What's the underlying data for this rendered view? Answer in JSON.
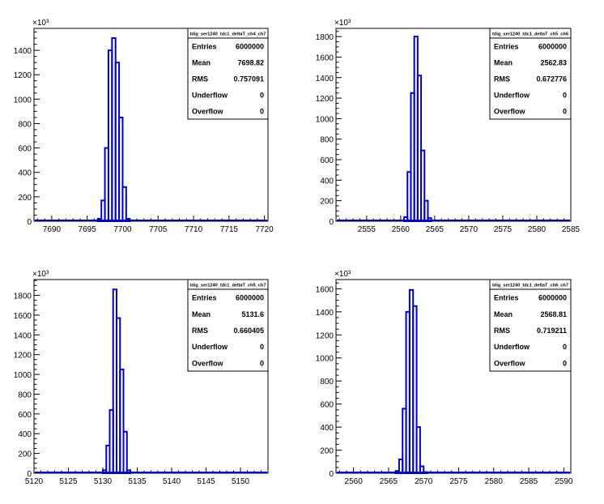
{
  "chart_data": [
    {
      "type": "histogram",
      "title": "tdig_ser1240_tdc1_deltaT_ch4_ch7",
      "y_exponent_label": "×10³",
      "y_tick_step": 200,
      "ylim": [
        0,
        1580
      ],
      "xlim": [
        7687.5,
        7720.5
      ],
      "x_ticks": [
        7690,
        7695,
        7700,
        7705,
        7710,
        7715,
        7720
      ],
      "y_ticks": [
        0,
        200,
        400,
        600,
        800,
        1000,
        1200,
        1400
      ],
      "bin_width": 0.5,
      "bins": [
        [
          7696.5,
          20
        ],
        [
          7697.0,
          170
        ],
        [
          7697.5,
          600
        ],
        [
          7698.0,
          1400
        ],
        [
          7698.5,
          1500
        ],
        [
          7699.0,
          1300
        ],
        [
          7699.5,
          850
        ],
        [
          7700.0,
          280
        ],
        [
          7700.5,
          20
        ]
      ],
      "stats": [
        {
          "label": "Entries",
          "value": "6000000"
        },
        {
          "label": "Mean",
          "value": "7698.82"
        },
        {
          "label": "RMS",
          "value": "0.757091"
        },
        {
          "label": "Underflow",
          "value": "0"
        },
        {
          "label": "Overflow",
          "value": "0"
        }
      ]
    },
    {
      "type": "histogram",
      "title": "tdig_ser1240_tdc1_deltaT_ch5_ch6",
      "y_exponent_label": "×10³",
      "y_tick_step": 200,
      "ylim": [
        0,
        1880
      ],
      "xlim": [
        2550.5,
        2585.0
      ],
      "x_ticks": [
        2555,
        2560,
        2565,
        2570,
        2575,
        2580,
        2585
      ],
      "y_ticks": [
        0,
        200,
        400,
        600,
        800,
        1000,
        1200,
        1400,
        1600,
        1800
      ],
      "bin_width": 0.5,
      "bins": [
        [
          2560.5,
          40
        ],
        [
          2561.0,
          480
        ],
        [
          2561.5,
          1250
        ],
        [
          2562.0,
          1800
        ],
        [
          2562.5,
          1420
        ],
        [
          2563.0,
          690
        ],
        [
          2563.5,
          200
        ],
        [
          2564.0,
          30
        ]
      ],
      "stats": [
        {
          "label": "Entries",
          "value": "6000000"
        },
        {
          "label": "Mean",
          "value": "2562.83"
        },
        {
          "label": "RMS",
          "value": "0.672776"
        },
        {
          "label": "Underflow",
          "value": "0"
        },
        {
          "label": "Overflow",
          "value": "0"
        }
      ]
    },
    {
      "type": "histogram",
      "title": "tdig_ser1240_tdc1_deltaT_ch5_ch7",
      "y_exponent_label": "×10³",
      "y_tick_step": 200,
      "ylim": [
        0,
        1960
      ],
      "xlim": [
        5120.0,
        5154.0
      ],
      "x_ticks": [
        5120,
        5125,
        5130,
        5135,
        5140,
        5145,
        5150
      ],
      "y_ticks": [
        0,
        200,
        400,
        600,
        800,
        1000,
        1200,
        1400,
        1600,
        1800
      ],
      "bin_width": 0.5,
      "bins": [
        [
          5130.0,
          30
        ],
        [
          5130.5,
          280
        ],
        [
          5131.0,
          640
        ],
        [
          5131.5,
          1860
        ],
        [
          5132.0,
          1570
        ],
        [
          5132.5,
          1050
        ],
        [
          5133.0,
          420
        ],
        [
          5133.5,
          30
        ]
      ],
      "stats": [
        {
          "label": "Entries",
          "value": "6000000"
        },
        {
          "label": "Mean",
          "value": "5131.6"
        },
        {
          "label": "RMS",
          "value": "0.660405"
        },
        {
          "label": "Underflow",
          "value": "0"
        },
        {
          "label": "Overflow",
          "value": "0"
        }
      ]
    },
    {
      "type": "histogram",
      "title": "tdig_ser1240_tdc1_deltaT_ch6_ch7",
      "y_exponent_label": "×10³",
      "y_tick_step": 200,
      "ylim": [
        0,
        1680
      ],
      "xlim": [
        2557.5,
        2591.0
      ],
      "x_ticks": [
        2560,
        2565,
        2570,
        2575,
        2580,
        2585,
        2590
      ],
      "y_ticks": [
        0,
        200,
        400,
        600,
        800,
        1000,
        1200,
        1400,
        1600
      ],
      "bin_width": 0.5,
      "bins": [
        [
          2566.0,
          20
        ],
        [
          2566.5,
          120
        ],
        [
          2567.0,
          560
        ],
        [
          2567.5,
          1400
        ],
        [
          2568.0,
          1590
        ],
        [
          2568.5,
          1450
        ],
        [
          2569.0,
          400
        ],
        [
          2569.5,
          60
        ],
        [
          2570.0,
          10
        ]
      ],
      "stats": [
        {
          "label": "Entries",
          "value": "6000000"
        },
        {
          "label": "Mean",
          "value": "2568.81"
        },
        {
          "label": "RMS",
          "value": "0.719211"
        },
        {
          "label": "Underflow",
          "value": "0"
        },
        {
          "label": "Overflow",
          "value": "0"
        }
      ]
    }
  ]
}
